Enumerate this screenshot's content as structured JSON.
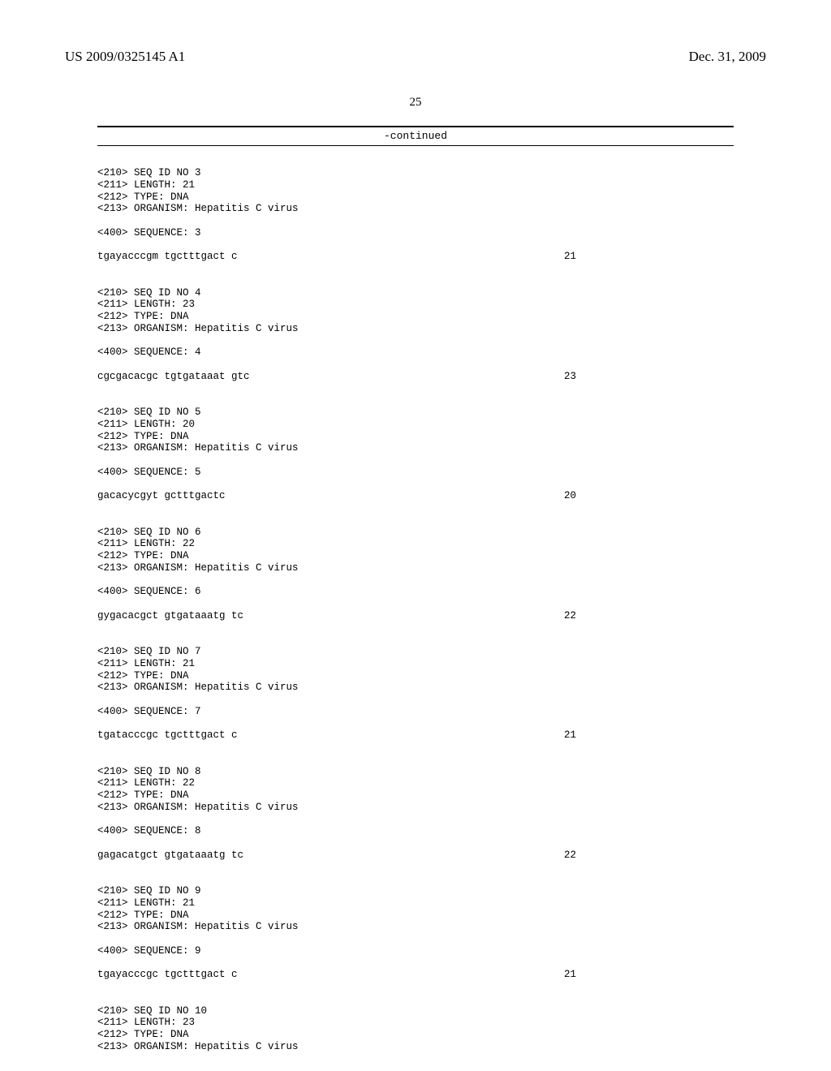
{
  "header": {
    "left": "US 2009/0325145 A1",
    "right": "Dec. 31, 2009"
  },
  "page_number": "25",
  "continued_label": "-continued",
  "sequences": [
    {
      "meta": [
        "<210> SEQ ID NO 3",
        "<211> LENGTH: 21",
        "<212> TYPE: DNA",
        "<213> ORGANISM: Hepatitis C virus"
      ],
      "seq_label": "<400> SEQUENCE: 3",
      "sequence": "tgayacccgm tgctttgact c",
      "length": "21"
    },
    {
      "meta": [
        "<210> SEQ ID NO 4",
        "<211> LENGTH: 23",
        "<212> TYPE: DNA",
        "<213> ORGANISM: Hepatitis C virus"
      ],
      "seq_label": "<400> SEQUENCE: 4",
      "sequence": "cgcgacacgc tgtgataaat gtc",
      "length": "23"
    },
    {
      "meta": [
        "<210> SEQ ID NO 5",
        "<211> LENGTH: 20",
        "<212> TYPE: DNA",
        "<213> ORGANISM: Hepatitis C virus"
      ],
      "seq_label": "<400> SEQUENCE: 5",
      "sequence": "gacacycgyt gctttgactc",
      "length": "20"
    },
    {
      "meta": [
        "<210> SEQ ID NO 6",
        "<211> LENGTH: 22",
        "<212> TYPE: DNA",
        "<213> ORGANISM: Hepatitis C virus"
      ],
      "seq_label": "<400> SEQUENCE: 6",
      "sequence": "gygacacgct gtgataaatg tc",
      "length": "22"
    },
    {
      "meta": [
        "<210> SEQ ID NO 7",
        "<211> LENGTH: 21",
        "<212> TYPE: DNA",
        "<213> ORGANISM: Hepatitis C virus"
      ],
      "seq_label": "<400> SEQUENCE: 7",
      "sequence": "tgatacccgc tgctttgact c",
      "length": "21"
    },
    {
      "meta": [
        "<210> SEQ ID NO 8",
        "<211> LENGTH: 22",
        "<212> TYPE: DNA",
        "<213> ORGANISM: Hepatitis C virus"
      ],
      "seq_label": "<400> SEQUENCE: 8",
      "sequence": "gagacatgct gtgataaatg tc",
      "length": "22"
    },
    {
      "meta": [
        "<210> SEQ ID NO 9",
        "<211> LENGTH: 21",
        "<212> TYPE: DNA",
        "<213> ORGANISM: Hepatitis C virus"
      ],
      "seq_label": "<400> SEQUENCE: 9",
      "sequence": "tgayacccgc tgctttgact c",
      "length": "21"
    },
    {
      "meta": [
        "<210> SEQ ID NO 10",
        "<211> LENGTH: 23",
        "<212> TYPE: DNA",
        "<213> ORGANISM: Hepatitis C virus"
      ],
      "seq_label": "",
      "sequence": "",
      "length": ""
    }
  ]
}
